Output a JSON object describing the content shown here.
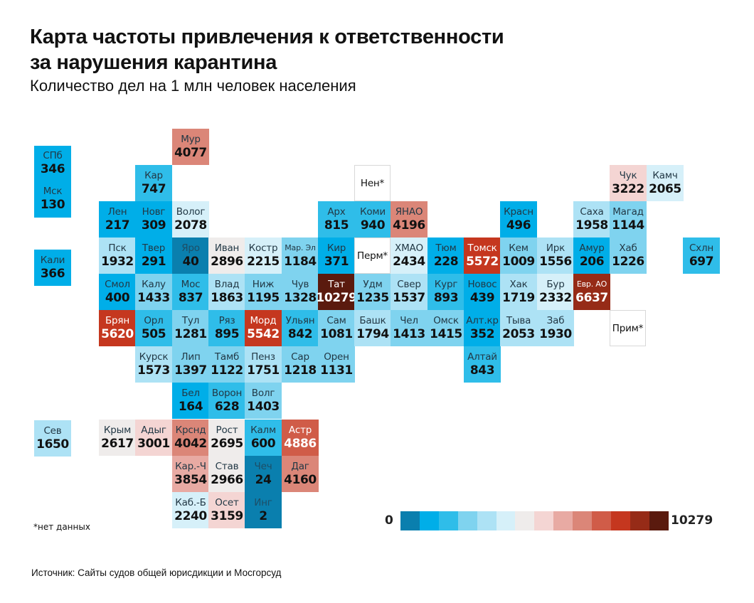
{
  "title_line1": "Карта частоты привлечения к ответственности",
  "title_line2": "за нарушения карантина",
  "subtitle": "Количество дел на 1 млн человек населения",
  "note": "*нет данных",
  "source": "Источник: Сайты судов общей юрисдикции и Мосгорсуд",
  "legend": {
    "min_label": "0",
    "max_label": "10279",
    "colors": [
      "#0a7fae",
      "#00aee8",
      "#2fbde9",
      "#7fd3ef",
      "#ade2f5",
      "#d6f0f9",
      "#efeceb",
      "#f4d5d3",
      "#e8aaa3",
      "#db8678",
      "#d05c48",
      "#c5371f",
      "#962b17",
      "#5a1a0e"
    ]
  },
  "chart_data": {
    "type": "heatmap",
    "title": "Карта частоты привлечения к ответственности за нарушения карантина",
    "subtitle": "Количество дел на 1 млн человек населения",
    "value_range": [
      0,
      10279
    ],
    "no_data_label": "*нет данных",
    "regions": [
      {
        "label": "СПб",
        "value": 346,
        "col": -1,
        "row": 0.5,
        "bin": 1,
        "group": "spb-msk"
      },
      {
        "label": "Мск",
        "value": 130,
        "col": -1,
        "row": 1.5,
        "bin": 1,
        "group": "spb-msk"
      },
      {
        "label": "Кали",
        "value": 366,
        "col": -1,
        "row": 3.35,
        "bin": 1
      },
      {
        "label": "Сев",
        "value": 1650,
        "col": -1,
        "row": 8,
        "bin": 4
      },
      {
        "label": "Мур",
        "value": 4077,
        "col": 2,
        "row": 0,
        "bin": 9
      },
      {
        "label": "Кар",
        "value": 747,
        "col": 1,
        "row": 1,
        "bin": 2
      },
      {
        "label": "Нен*",
        "value": null,
        "col": 7,
        "row": 1,
        "bin": null
      },
      {
        "label": "Чук",
        "value": 3222,
        "col": 14,
        "row": 1,
        "bin": 7
      },
      {
        "label": "Камч",
        "value": 2065,
        "col": 15,
        "row": 1,
        "bin": 5
      },
      {
        "label": "Лен",
        "value": 217,
        "col": 0,
        "row": 2,
        "bin": 1
      },
      {
        "label": "Новг",
        "value": 309,
        "col": 1,
        "row": 2,
        "bin": 1
      },
      {
        "label": "Волог",
        "value": 2078,
        "col": 2,
        "row": 2,
        "bin": 5
      },
      {
        "label": "Арх",
        "value": 815,
        "col": 6,
        "row": 2,
        "bin": 2
      },
      {
        "label": "Коми",
        "value": 940,
        "col": 7,
        "row": 2,
        "bin": 2
      },
      {
        "label": "ЯНАО",
        "value": 4196,
        "col": 8,
        "row": 2,
        "bin": 9
      },
      {
        "label": "Красн",
        "value": 496,
        "col": 11,
        "row": 2,
        "bin": 1
      },
      {
        "label": "Саха",
        "value": 1958,
        "col": 13,
        "row": 2,
        "bin": 4
      },
      {
        "label": "Магад",
        "value": 1144,
        "col": 14,
        "row": 2,
        "bin": 3
      },
      {
        "label": "Пск",
        "value": 1932,
        "col": 0,
        "row": 3,
        "bin": 4
      },
      {
        "label": "Твер",
        "value": 291,
        "col": 1,
        "row": 3,
        "bin": 1
      },
      {
        "label": "Яро",
        "value": 40,
        "col": 2,
        "row": 3,
        "bin": 0
      },
      {
        "label": "Иван",
        "value": 2896,
        "col": 3,
        "row": 3,
        "bin": 6
      },
      {
        "label": "Костр",
        "value": 2215,
        "col": 4,
        "row": 3,
        "bin": 5
      },
      {
        "label": "Мар. Эл",
        "value": 1184,
        "col": 5,
        "row": 3,
        "bin": 3
      },
      {
        "label": "Кир",
        "value": 371,
        "col": 6,
        "row": 3,
        "bin": 1
      },
      {
        "label": "Перм*",
        "value": null,
        "col": 7,
        "row": 3,
        "bin": null
      },
      {
        "label": "ХМАО",
        "value": 2434,
        "col": 8,
        "row": 3,
        "bin": 5
      },
      {
        "label": "Тюм",
        "value": 228,
        "col": 9,
        "row": 3,
        "bin": 1
      },
      {
        "label": "Томск",
        "value": 5572,
        "col": 10,
        "row": 3,
        "bin": 11
      },
      {
        "label": "Кем",
        "value": 1009,
        "col": 11,
        "row": 3,
        "bin": 3
      },
      {
        "label": "Ирк",
        "value": 1556,
        "col": 12,
        "row": 3,
        "bin": 4
      },
      {
        "label": "Амур",
        "value": 206,
        "col": 13,
        "row": 3,
        "bin": 1
      },
      {
        "label": "Хаб",
        "value": 1226,
        "col": 14,
        "row": 3,
        "bin": 3
      },
      {
        "label": "Схлн",
        "value": 697,
        "col": 16,
        "row": 3,
        "bin": 2
      },
      {
        "label": "Смол",
        "value": 400,
        "col": 0,
        "row": 4,
        "bin": 1
      },
      {
        "label": "Калу",
        "value": 1433,
        "col": 1,
        "row": 4,
        "bin": 3
      },
      {
        "label": "Мос",
        "value": 837,
        "col": 2,
        "row": 4,
        "bin": 2
      },
      {
        "label": "Влад",
        "value": 1863,
        "col": 3,
        "row": 4,
        "bin": 4
      },
      {
        "label": "Ниж",
        "value": 1195,
        "col": 4,
        "row": 4,
        "bin": 3
      },
      {
        "label": "Чув",
        "value": 1328,
        "col": 5,
        "row": 4,
        "bin": 3
      },
      {
        "label": "Тат",
        "value": 10279,
        "col": 6,
        "row": 4,
        "bin": 13
      },
      {
        "label": "Удм",
        "value": 1235,
        "col": 7,
        "row": 4,
        "bin": 3
      },
      {
        "label": "Свер",
        "value": 1537,
        "col": 8,
        "row": 4,
        "bin": 4
      },
      {
        "label": "Кург",
        "value": 893,
        "col": 9,
        "row": 4,
        "bin": 2
      },
      {
        "label": "Новос",
        "value": 439,
        "col": 10,
        "row": 4,
        "bin": 1
      },
      {
        "label": "Хак",
        "value": 1719,
        "col": 11,
        "row": 4,
        "bin": 4
      },
      {
        "label": "Бур",
        "value": 2332,
        "col": 12,
        "row": 4,
        "bin": 5
      },
      {
        "label": "Евр. АО",
        "value": 6637,
        "col": 13,
        "row": 4,
        "bin": 12
      },
      {
        "label": "Брян",
        "value": 5620,
        "col": 0,
        "row": 5,
        "bin": 11
      },
      {
        "label": "Орл",
        "value": 505,
        "col": 1,
        "row": 5,
        "bin": 2
      },
      {
        "label": "Тул",
        "value": 1281,
        "col": 2,
        "row": 5,
        "bin": 3
      },
      {
        "label": "Ряз",
        "value": 895,
        "col": 3,
        "row": 5,
        "bin": 2
      },
      {
        "label": "Морд",
        "value": 5542,
        "col": 4,
        "row": 5,
        "bin": 11
      },
      {
        "label": "Ульян",
        "value": 842,
        "col": 5,
        "row": 5,
        "bin": 2
      },
      {
        "label": "Сам",
        "value": 1081,
        "col": 6,
        "row": 5,
        "bin": 3
      },
      {
        "label": "Башк",
        "value": 1794,
        "col": 7,
        "row": 5,
        "bin": 4
      },
      {
        "label": "Чел",
        "value": 1413,
        "col": 8,
        "row": 5,
        "bin": 3
      },
      {
        "label": "Омск",
        "value": 1415,
        "col": 9,
        "row": 5,
        "bin": 3
      },
      {
        "label": "Алт.кр",
        "value": 352,
        "col": 10,
        "row": 5,
        "bin": 1
      },
      {
        "label": "Тыва",
        "value": 2053,
        "col": 11,
        "row": 5,
        "bin": 4
      },
      {
        "label": "Заб",
        "value": 1930,
        "col": 12,
        "row": 5,
        "bin": 4
      },
      {
        "label": "Прим*",
        "value": null,
        "col": 14,
        "row": 5,
        "bin": null
      },
      {
        "label": "Курск",
        "value": 1573,
        "col": 1,
        "row": 6,
        "bin": 4
      },
      {
        "label": "Лип",
        "value": 1397,
        "col": 2,
        "row": 6,
        "bin": 3
      },
      {
        "label": "Тамб",
        "value": 1122,
        "col": 3,
        "row": 6,
        "bin": 3
      },
      {
        "label": "Пенз",
        "value": 1751,
        "col": 4,
        "row": 6,
        "bin": 4
      },
      {
        "label": "Сар",
        "value": 1218,
        "col": 5,
        "row": 6,
        "bin": 3
      },
      {
        "label": "Орен",
        "value": 1131,
        "col": 6,
        "row": 6,
        "bin": 3
      },
      {
        "label": "Алтай",
        "value": 843,
        "col": 10,
        "row": 6,
        "bin": 2
      },
      {
        "label": "Бел",
        "value": 164,
        "col": 2,
        "row": 7,
        "bin": 1
      },
      {
        "label": "Ворон",
        "value": 628,
        "col": 3,
        "row": 7,
        "bin": 2
      },
      {
        "label": "Волг",
        "value": 1403,
        "col": 4,
        "row": 7,
        "bin": 3
      },
      {
        "label": "Крым",
        "value": 2617,
        "col": 0,
        "row": 8,
        "bin": 6
      },
      {
        "label": "Адыг",
        "value": 3001,
        "col": 1,
        "row": 8,
        "bin": 7
      },
      {
        "label": "Крснд",
        "value": 4042,
        "col": 2,
        "row": 8,
        "bin": 9
      },
      {
        "label": "Рост",
        "value": 2695,
        "col": 3,
        "row": 8,
        "bin": 6
      },
      {
        "label": "Калм",
        "value": 600,
        "col": 4,
        "row": 8,
        "bin": 2
      },
      {
        "label": "Астр",
        "value": 4886,
        "col": 5,
        "row": 8,
        "bin": 10
      },
      {
        "label": "Кар.-Ч",
        "value": 3854,
        "col": 2,
        "row": 9,
        "bin": 8
      },
      {
        "label": "Став",
        "value": 2966,
        "col": 3,
        "row": 9,
        "bin": 6
      },
      {
        "label": "Чеч",
        "value": 24,
        "col": 4,
        "row": 9,
        "bin": 0
      },
      {
        "label": "Даг",
        "value": 4160,
        "col": 5,
        "row": 9,
        "bin": 9
      },
      {
        "label": "Каб.-Б",
        "value": 2240,
        "col": 2,
        "row": 10,
        "bin": 5
      },
      {
        "label": "Осет",
        "value": 3159,
        "col": 3,
        "row": 10,
        "bin": 7
      },
      {
        "label": "Инг",
        "value": 2,
        "col": 4,
        "row": 10,
        "bin": 0
      }
    ]
  }
}
